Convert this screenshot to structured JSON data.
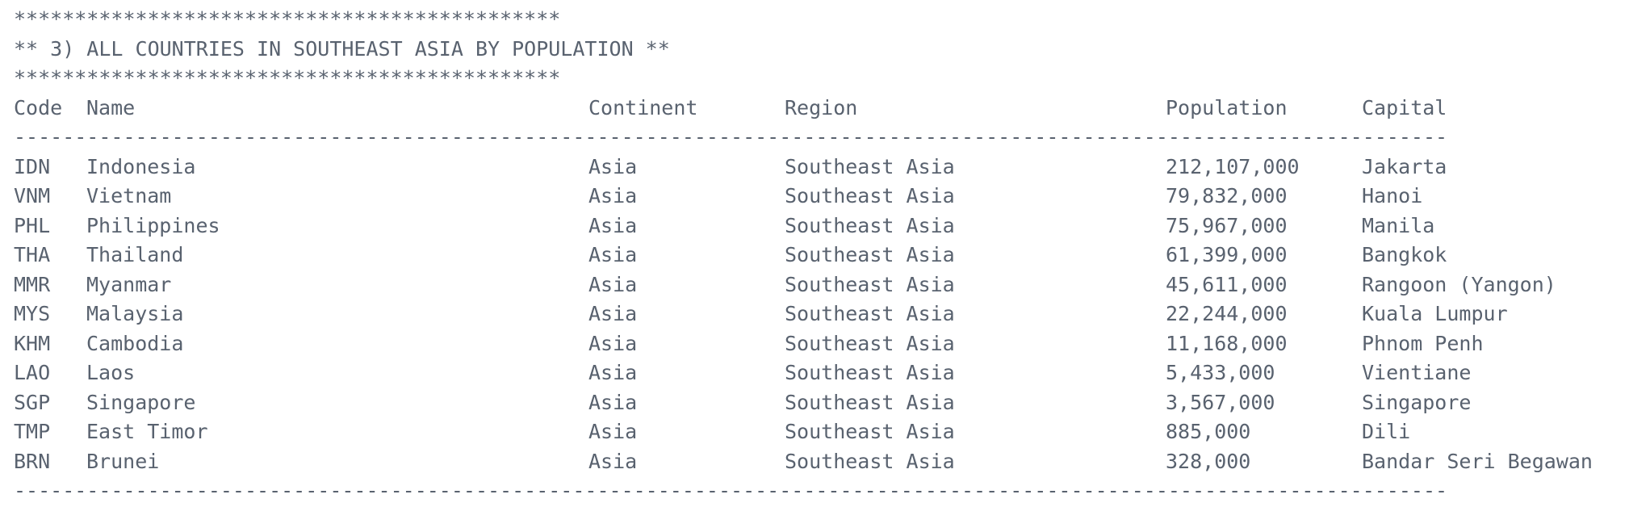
{
  "banner": {
    "top": "*********************************************",
    "title": "** 3) ALL COUNTRIES IN SOUTHEAST ASIA BY POPULATION **",
    "bottom": "*********************************************"
  },
  "headers": {
    "code": "Code",
    "name": "Name",
    "continent": "Continent",
    "region": "Region",
    "population": "Population",
    "capital": "Capital"
  },
  "separator": "----------------------------------------------------------------------------------------------------------------------",
  "rows": [
    {
      "code": "IDN",
      "name": "Indonesia",
      "continent": "Asia",
      "region": "Southeast Asia",
      "population": "212,107,000",
      "capital": "Jakarta"
    },
    {
      "code": "VNM",
      "name": "Vietnam",
      "continent": "Asia",
      "region": "Southeast Asia",
      "population": "79,832,000",
      "capital": "Hanoi"
    },
    {
      "code": "PHL",
      "name": "Philippines",
      "continent": "Asia",
      "region": "Southeast Asia",
      "population": "75,967,000",
      "capital": "Manila"
    },
    {
      "code": "THA",
      "name": "Thailand",
      "continent": "Asia",
      "region": "Southeast Asia",
      "population": "61,399,000",
      "capital": "Bangkok"
    },
    {
      "code": "MMR",
      "name": "Myanmar",
      "continent": "Asia",
      "region": "Southeast Asia",
      "population": "45,611,000",
      "capital": "Rangoon (Yangon)"
    },
    {
      "code": "MYS",
      "name": "Malaysia",
      "continent": "Asia",
      "region": "Southeast Asia",
      "population": "22,244,000",
      "capital": "Kuala Lumpur"
    },
    {
      "code": "KHM",
      "name": "Cambodia",
      "continent": "Asia",
      "region": "Southeast Asia",
      "population": "11,168,000",
      "capital": "Phnom Penh"
    },
    {
      "code": "LAO",
      "name": "Laos",
      "continent": "Asia",
      "region": "Southeast Asia",
      "population": "5,433,000",
      "capital": "Vientiane"
    },
    {
      "code": "SGP",
      "name": "Singapore",
      "continent": "Asia",
      "region": "Southeast Asia",
      "population": "3,567,000",
      "capital": "Singapore"
    },
    {
      "code": "TMP",
      "name": "East Timor",
      "continent": "Asia",
      "region": "Southeast Asia",
      "population": "885,000",
      "capital": "Dili"
    },
    {
      "code": "BRN",
      "name": "Brunei",
      "continent": "Asia",
      "region": "Southeast Asia",
      "population": "328,000",
      "capital": "Bandar Seri Begawan"
    }
  ]
}
